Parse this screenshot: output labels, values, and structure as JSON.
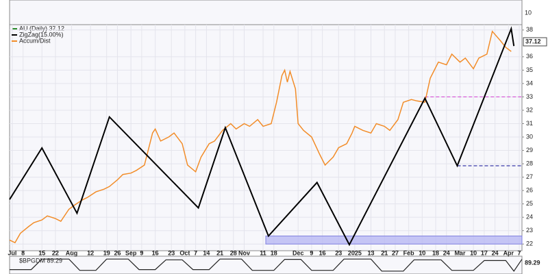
{
  "chart_data": {
    "type": "line",
    "title": "AU (Daily) 37.12",
    "last_price": 37.12,
    "xlim": [
      0,
      190
    ],
    "xticks": [
      {
        "value": 1,
        "label": "Jul"
      },
      {
        "value": 5,
        "label": "8"
      },
      {
        "value": 12,
        "label": "15"
      },
      {
        "value": 17,
        "label": "22"
      },
      {
        "value": 23,
        "label": "Aug"
      },
      {
        "value": 30,
        "label": "12"
      },
      {
        "value": 36,
        "label": "19"
      },
      {
        "value": 40,
        "label": "26"
      },
      {
        "value": 45,
        "label": "Sep"
      },
      {
        "value": 49,
        "label": "9"
      },
      {
        "value": 54,
        "label": "16"
      },
      {
        "value": 60,
        "label": "23"
      },
      {
        "value": 65,
        "label": "Oct"
      },
      {
        "value": 69,
        "label": "7"
      },
      {
        "value": 73,
        "label": "14"
      },
      {
        "value": 78,
        "label": "21"
      },
      {
        "value": 83,
        "label": "28"
      },
      {
        "value": 87,
        "label": "Nov"
      },
      {
        "value": 94,
        "label": "11"
      },
      {
        "value": 98,
        "label": "18"
      },
      {
        "value": 107,
        "label": "Dec"
      },
      {
        "value": 112,
        "label": "9"
      },
      {
        "value": 116,
        "label": "16"
      },
      {
        "value": 122,
        "label": "23"
      },
      {
        "value": 128,
        "label": "2025"
      },
      {
        "value": 134,
        "label": "13"
      },
      {
        "value": 139,
        "label": "21"
      },
      {
        "value": 143,
        "label": "27"
      },
      {
        "value": 148,
        "label": "Feb"
      },
      {
        "value": 153,
        "label": "10"
      },
      {
        "value": 158,
        "label": "18"
      },
      {
        "value": 162,
        "label": "24"
      },
      {
        "value": 167,
        "label": "Mar"
      },
      {
        "value": 172,
        "label": "10"
      },
      {
        "value": 176,
        "label": "17"
      },
      {
        "value": 180,
        "label": "24"
      },
      {
        "value": 185,
        "label": "Apr"
      },
      {
        "value": 189,
        "label": "7"
      }
    ],
    "ylim": [
      21.5,
      38.4
    ],
    "yticks": [
      22,
      23,
      24,
      25,
      26,
      27,
      28,
      29,
      30,
      31,
      32,
      33,
      34,
      35,
      36,
      38
    ],
    "grid": true,
    "series": [
      {
        "name": "ZigZag(15.00%)",
        "color": "#000000",
        "x": [
          0,
          12,
          25,
          37,
          70,
          80,
          96,
          114,
          126,
          154,
          166,
          186,
          187
        ],
        "values": [
          25.33,
          29.18,
          24.3,
          31.5,
          24.7,
          30.7,
          22.6,
          26.6,
          21.95,
          32.9,
          27.85,
          38.1,
          36.8
        ]
      },
      {
        "name": "Accum/Dist",
        "color": "#f28c28",
        "x": [
          0,
          2,
          4,
          7,
          9,
          12,
          14,
          17,
          19,
          22,
          24,
          27,
          29,
          32,
          35,
          37,
          40,
          42,
          45,
          47,
          50,
          51,
          53,
          54,
          56,
          59,
          61,
          64,
          66,
          69,
          71,
          74,
          76,
          79,
          82,
          84,
          87,
          89,
          92,
          94,
          97,
          99,
          101,
          102,
          103,
          104,
          106,
          107,
          109,
          112,
          115,
          117,
          120,
          122,
          125,
          127,
          128,
          131,
          134,
          136,
          139,
          141,
          144,
          146,
          149,
          151,
          154,
          156,
          159,
          162,
          164,
          167,
          169,
          172,
          174,
          177,
          179,
          182,
          184,
          186
        ],
        "values": [
          22.3,
          22.1,
          22.8,
          23.3,
          23.6,
          23.8,
          24.1,
          23.9,
          23.7,
          24.6,
          24.9,
          25.3,
          25.5,
          25.9,
          26.1,
          26.3,
          26.8,
          27.2,
          27.3,
          27.5,
          27.9,
          28.7,
          30.3,
          30.6,
          29.7,
          30.0,
          30.3,
          29.5,
          27.9,
          27.4,
          28.5,
          29.5,
          29.7,
          30.5,
          31.0,
          30.6,
          31.0,
          30.8,
          31.3,
          30.8,
          31.0,
          32.6,
          34.6,
          35.0,
          34.1,
          34.9,
          33.6,
          31.0,
          30.5,
          30.0,
          28.7,
          27.9,
          28.5,
          29.2,
          29.5,
          30.3,
          30.8,
          30.5,
          30.3,
          31.0,
          30.8,
          30.5,
          31.3,
          32.6,
          32.8,
          32.7,
          32.6,
          34.4,
          35.6,
          35.4,
          36.2,
          35.6,
          35.9,
          35.1,
          35.9,
          36.2,
          37.9,
          37.2,
          36.7,
          36.4
        ]
      }
    ],
    "levels": [
      {
        "value": 33,
        "from": 154,
        "color": "#d54fd5"
      },
      {
        "value": 27.85,
        "from": 166,
        "color": "#3a3aa8"
      }
    ],
    "support_zone": {
      "from": 95,
      "to": 190,
      "low": 22.0,
      "high": 22.6,
      "color": "#b8b8f4"
    },
    "top_panel": {
      "ytick": 10
    },
    "indicator": {
      "name": "$BPGDM 89.29",
      "last": 89.29,
      "ylim": [
        0,
        100
      ],
      "x": [
        0,
        8,
        12,
        22,
        26,
        32,
        36,
        44,
        48,
        54,
        58,
        64,
        68,
        74,
        78,
        86,
        90,
        98,
        102,
        108,
        112,
        120,
        124,
        134,
        138,
        146,
        150,
        160,
        164,
        172,
        176,
        184,
        187,
        190
      ],
      "values": [
        20,
        20,
        90,
        90,
        15,
        15,
        90,
        90,
        20,
        20,
        85,
        85,
        20,
        20,
        90,
        90,
        15,
        15,
        88,
        88,
        15,
        15,
        90,
        90,
        10,
        10,
        85,
        85,
        15,
        15,
        80,
        80,
        10,
        89.29
      ]
    }
  }
}
